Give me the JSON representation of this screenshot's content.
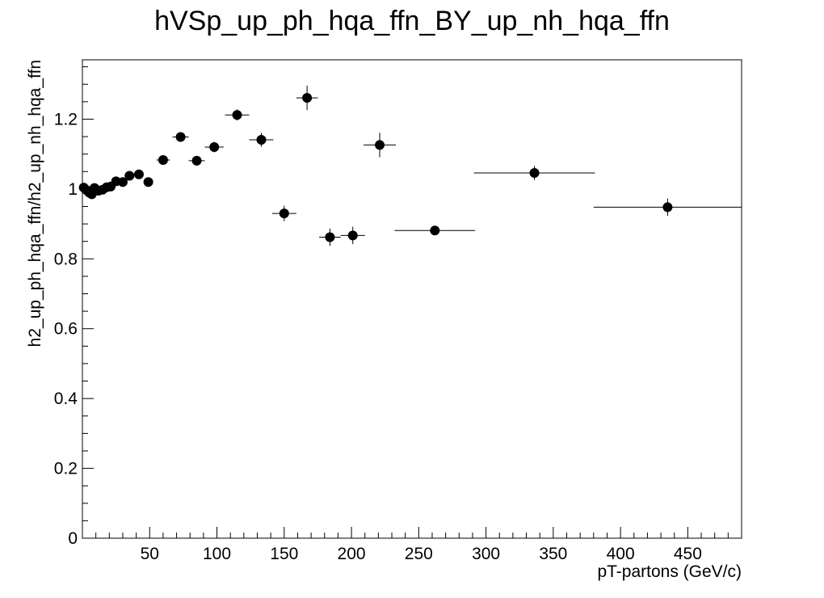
{
  "chart_data": {
    "type": "scatter",
    "title": "hVSp_up_ph_hqa_ffn_BY_up_nh_hqa_ffn",
    "xlabel": "pT-partons (GeV/c)",
    "ylabel": "h2_up_ph_hqa_ffn/h2_up_nh_hqa_ffn",
    "xlim": [
      0,
      490
    ],
    "ylim": [
      0,
      1.37
    ],
    "x_ticks": [
      50,
      100,
      150,
      200,
      250,
      300,
      350,
      400,
      450
    ],
    "y_ticks": [
      0,
      0.2,
      0.4,
      0.6,
      0.8,
      1,
      1.2
    ],
    "y_tick_labels": [
      "0",
      "0.2",
      "0.4",
      "0.6",
      "0.8",
      "1",
      "1.2"
    ],
    "grid": false,
    "legend": "none",
    "marker_color": "#000000",
    "points": [
      {
        "x": 1,
        "y": 1.004,
        "xerr": 1,
        "yerr": 0.008
      },
      {
        "x": 3,
        "y": 0.997,
        "xerr": 1,
        "yerr": 0.008
      },
      {
        "x": 5,
        "y": 0.99,
        "xerr": 1,
        "yerr": 0.008
      },
      {
        "x": 7,
        "y": 0.985,
        "xerr": 1,
        "yerr": 0.008
      },
      {
        "x": 9,
        "y": 1.003,
        "xerr": 1,
        "yerr": 0.008
      },
      {
        "x": 12,
        "y": 0.995,
        "xerr": 2,
        "yerr": 0.008
      },
      {
        "x": 15,
        "y": 0.998,
        "xerr": 2,
        "yerr": 0.008
      },
      {
        "x": 18,
        "y": 1.005,
        "xerr": 2,
        "yerr": 0.008
      },
      {
        "x": 21,
        "y": 1.007,
        "xerr": 2,
        "yerr": 0.009
      },
      {
        "x": 25,
        "y": 1.022,
        "xerr": 2.5,
        "yerr": 0.009
      },
      {
        "x": 30,
        "y": 1.02,
        "xerr": 2.5,
        "yerr": 0.01
      },
      {
        "x": 35,
        "y": 1.038,
        "xerr": 2.5,
        "yerr": 0.01
      },
      {
        "x": 42,
        "y": 1.042,
        "xerr": 3.5,
        "yerr": 0.011
      },
      {
        "x": 49,
        "y": 1.02,
        "xerr": 3.5,
        "yerr": 0.012
      },
      {
        "x": 60,
        "y": 1.083,
        "xerr": 5,
        "yerr": 0.013
      },
      {
        "x": 73,
        "y": 1.149,
        "xerr": 6,
        "yerr": 0.014
      },
      {
        "x": 85,
        "y": 1.081,
        "xerr": 6,
        "yerr": 0.014
      },
      {
        "x": 98,
        "y": 1.12,
        "xerr": 7,
        "yerr": 0.015
      },
      {
        "x": 115,
        "y": 1.212,
        "xerr": 9,
        "yerr": 0.016
      },
      {
        "x": 133,
        "y": 1.141,
        "xerr": 9,
        "yerr": 0.02
      },
      {
        "x": 150,
        "y": 0.93,
        "xerr": 9,
        "yerr": 0.022
      },
      {
        "x": 167,
        "y": 1.261,
        "xerr": 8,
        "yerr": 0.035
      },
      {
        "x": 184,
        "y": 0.862,
        "xerr": 8,
        "yerr": 0.025
      },
      {
        "x": 201,
        "y": 0.867,
        "xerr": 9,
        "yerr": 0.025
      },
      {
        "x": 221,
        "y": 1.126,
        "xerr": 12,
        "yerr": 0.035
      },
      {
        "x": 262,
        "y": 0.881,
        "xerr": 30,
        "yerr": 0.01
      },
      {
        "x": 336,
        "y": 1.046,
        "xerr": 45,
        "yerr": 0.02
      },
      {
        "x": 435,
        "y": 0.948,
        "xerr": 55,
        "yerr": 0.025
      }
    ]
  }
}
